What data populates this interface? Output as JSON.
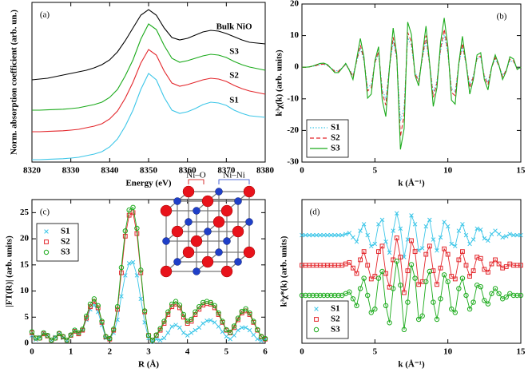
{
  "chart_data": [
    {
      "type": "line",
      "panel_label": "(a)",
      "x_label": "Energy (eV)",
      "y_label": "Norm. absorption coefficient (arb. un.)",
      "xlim": [
        8320,
        8380
      ],
      "ylim": [
        0,
        10
      ],
      "xticks": [
        8320,
        8330,
        8340,
        8350,
        8360,
        8370,
        8380
      ],
      "legend": "inline",
      "x": [
        8320,
        8322,
        8324,
        8326,
        8328,
        8330,
        8332,
        8334,
        8336,
        8338,
        8340,
        8342,
        8344,
        8346,
        8348,
        8350,
        8352,
        8354,
        8356,
        8358,
        8360,
        8362,
        8364,
        8366,
        8368,
        8370,
        8372,
        8374,
        8376,
        8378,
        8380
      ],
      "series": [
        {
          "name": "Bulk NiO",
          "color": "#000000",
          "line_style": "solid",
          "values": [
            5.15,
            5.2,
            5.25,
            5.35,
            5.45,
            5.55,
            5.65,
            5.75,
            5.9,
            6.1,
            6.4,
            6.9,
            7.6,
            8.4,
            9.2,
            9.55,
            9.2,
            8.4,
            7.8,
            7.65,
            7.75,
            7.95,
            8.15,
            8.25,
            8.2,
            8.05,
            7.85,
            7.65,
            7.5,
            7.45,
            7.4
          ]
        },
        {
          "name": "S3",
          "color": "#1aaa1a",
          "line_style": "solid",
          "values": [
            3.25,
            3.25,
            3.27,
            3.29,
            3.31,
            3.35,
            3.4,
            3.5,
            3.6,
            3.75,
            4.05,
            4.55,
            5.4,
            6.4,
            7.7,
            8.65,
            8.3,
            7.3,
            6.5,
            6.25,
            6.35,
            6.5,
            6.65,
            6.75,
            6.7,
            6.55,
            6.3,
            6.1,
            5.95,
            5.85,
            5.75
          ]
        },
        {
          "name": "S2",
          "color": "#e3262b",
          "line_style": "solid",
          "values": [
            1.9,
            1.9,
            1.92,
            1.94,
            1.96,
            2.0,
            2.05,
            2.15,
            2.25,
            2.4,
            2.7,
            3.2,
            4.0,
            5.0,
            6.2,
            7.05,
            6.7,
            5.7,
            4.95,
            4.75,
            4.85,
            5.0,
            5.15,
            5.25,
            5.2,
            5.05,
            4.8,
            4.6,
            4.45,
            4.35,
            4.25
          ]
        },
        {
          "name": "S1",
          "color": "#3cc6e8",
          "line_style": "solid",
          "values": [
            0.15,
            0.15,
            0.17,
            0.19,
            0.21,
            0.25,
            0.3,
            0.4,
            0.5,
            0.65,
            0.95,
            1.45,
            2.25,
            3.25,
            4.55,
            5.55,
            5.15,
            4.05,
            3.25,
            3.05,
            3.15,
            3.35,
            3.6,
            3.75,
            3.7,
            3.55,
            3.25,
            3.05,
            2.9,
            2.85,
            2.8
          ]
        }
      ]
    },
    {
      "type": "line",
      "panel_label": "(b)",
      "x_label": "k (Å⁻¹)",
      "y_label": "k³χ(k) (arb. units)",
      "xlim": [
        0,
        15
      ],
      "ylim": [
        -30,
        20
      ],
      "xticks": [
        0,
        5,
        10,
        15
      ],
      "yticks": [
        -30,
        -20,
        -10,
        0,
        10,
        20
      ],
      "legend": "lower left",
      "x": [
        0,
        0.25,
        0.5,
        0.75,
        1,
        1.25,
        1.5,
        1.75,
        2,
        2.25,
        2.5,
        2.75,
        3,
        3.25,
        3.5,
        3.75,
        4,
        4.25,
        4.5,
        4.75,
        5,
        5.25,
        5.5,
        5.75,
        6,
        6.25,
        6.5,
        6.75,
        7,
        7.25,
        7.5,
        7.75,
        8,
        8.25,
        8.5,
        8.75,
        9,
        9.25,
        9.5,
        9.75,
        10,
        10.25,
        10.5,
        10.75,
        11,
        11.25,
        11.5,
        11.75,
        12,
        12.25,
        12.5,
        12.75,
        13,
        13.25,
        13.5,
        13.75,
        14,
        14.25,
        14.5,
        14.75,
        15
      ],
      "series": [
        {
          "name": "S1",
          "color": "#3cc6e8",
          "line_style": "dotted",
          "values": [
            0,
            0,
            0.1,
            0.3,
            0.5,
            0.8,
            0.9,
            0.5,
            -0.3,
            -1.1,
            -1.1,
            -0.2,
            0.8,
            -0.7,
            -2.6,
            1.7,
            6.0,
            2.1,
            -6.4,
            -5.5,
            1.3,
            4.3,
            -6.8,
            -10.2,
            0,
            8.1,
            2.6,
            -17.0,
            -12.8,
            9.4,
            6.8,
            -1.7,
            -3.8,
            2.6,
            8.5,
            0.9,
            -8.1,
            -4.3,
            5.1,
            10.2,
            4.3,
            -6.8,
            -7.7,
            0.9,
            6.4,
            0.9,
            -5.5,
            -2.6,
            2.6,
            3.0,
            -2.6,
            -4.7,
            0,
            2.6,
            0.4,
            -2.6,
            -0.9,
            2.1,
            1.7,
            -0.4,
            0
          ]
        },
        {
          "name": "S2",
          "color": "#e3262b",
          "line_style": "dashed",
          "values": [
            0,
            0,
            0.1,
            0.3,
            0.6,
            0.9,
            1.0,
            0.6,
            -0.3,
            -1.3,
            -1.3,
            -0.2,
            0.9,
            -0.8,
            -3.0,
            2.0,
            7.0,
            2.5,
            -7.5,
            -6.5,
            1.5,
            5.0,
            -8.0,
            -12.0,
            0,
            9.5,
            3.0,
            -22.0,
            -15.0,
            11.0,
            8.0,
            -2.0,
            -4.5,
            3.0,
            10.0,
            1.0,
            -9.5,
            -5.0,
            6.0,
            12.0,
            5.0,
            -8.0,
            -9.0,
            1.0,
            7.5,
            1.0,
            -6.5,
            -3.0,
            3.0,
            3.5,
            -3.0,
            -5.5,
            0,
            3.0,
            0.5,
            -3.0,
            -1.0,
            2.5,
            2.0,
            -0.5,
            0
          ]
        },
        {
          "name": "S3",
          "color": "#1aaa1a",
          "line_style": "solid",
          "values": [
            0,
            0,
            0.1,
            0.4,
            0.8,
            1.2,
            1.3,
            0.8,
            -0.4,
            -1.7,
            -1.7,
            -0.3,
            1.2,
            -1.0,
            -3.9,
            2.6,
            9.1,
            3.3,
            -9.8,
            -8.5,
            2.0,
            6.5,
            -10.4,
            -15.6,
            0,
            12.4,
            3.9,
            -26.0,
            -19.5,
            14.3,
            10.4,
            -2.6,
            -5.9,
            3.9,
            13.0,
            1.3,
            -12.4,
            -6.5,
            7.8,
            15.6,
            6.5,
            -10.4,
            -11.7,
            1.3,
            9.8,
            1.3,
            -8.5,
            -3.9,
            3.9,
            4.6,
            -3.9,
            -7.2,
            0,
            3.9,
            0.7,
            -3.9,
            -1.3,
            3.3,
            2.6,
            -0.7,
            0
          ]
        }
      ]
    },
    {
      "type": "line",
      "panel_label": "(c)",
      "x_label": "R (Å)",
      "y_label": "|FT(R)| (arb. units)",
      "xlim": [
        0,
        6
      ],
      "ylim": [
        0,
        27.5
      ],
      "xticks": [
        0,
        1,
        2,
        3,
        4,
        5,
        6
      ],
      "yticks": [
        0,
        5,
        10,
        15,
        20,
        25
      ],
      "legend": "upper left",
      "inset_labels": [
        "Ni–O",
        "Ni–Ni"
      ],
      "x": [
        0,
        0.1,
        0.2,
        0.3,
        0.4,
        0.5,
        0.6,
        0.7,
        0.8,
        0.9,
        1,
        1.1,
        1.2,
        1.3,
        1.4,
        1.5,
        1.6,
        1.7,
        1.8,
        1.9,
        2,
        2.1,
        2.2,
        2.3,
        2.4,
        2.5,
        2.6,
        2.7,
        2.8,
        2.9,
        3,
        3.1,
        3.2,
        3.3,
        3.4,
        3.5,
        3.6,
        3.7,
        3.8,
        3.9,
        4,
        4.1,
        4.2,
        4.3,
        4.4,
        4.5,
        4.6,
        4.7,
        4.8,
        4.9,
        5,
        5.1,
        5.2,
        5.3,
        5.4,
        5.5,
        5.6,
        5.7,
        5.8,
        5.9,
        6
      ],
      "series": [
        {
          "name": "S1",
          "color": "#3cc6e8",
          "marker": "x",
          "values": [
            1.5,
            0.7,
            1.2,
            2.0,
            1.5,
            0.6,
            1.2,
            1.8,
            1.0,
            0.5,
            1.5,
            2.5,
            2.0,
            2.5,
            4.5,
            6.5,
            7.3,
            6.0,
            3.5,
            1.0,
            0.8,
            2.0,
            4.5,
            9.0,
            13.0,
            15.3,
            15.5,
            13.0,
            8.5,
            4.0,
            1.0,
            0.3,
            0.8,
            0.6,
            1.0,
            2.0,
            3.2,
            3.5,
            3.0,
            2.0,
            1.5,
            2.0,
            2.5,
            3.0,
            3.8,
            4.3,
            4.4,
            4.0,
            3.2,
            2.2,
            1.3,
            0.8,
            1.5,
            2.5,
            3.0,
            3.0,
            2.5,
            1.6,
            0.8,
            0.5,
            0.8
          ]
        },
        {
          "name": "S2",
          "color": "#e3262b",
          "marker": "square",
          "values": [
            2.0,
            1.0,
            1.0,
            1.8,
            1.4,
            0.6,
            1.0,
            1.8,
            1.2,
            0.6,
            1.5,
            2.3,
            1.8,
            2.5,
            4.8,
            7.0,
            8.0,
            6.8,
            4.0,
            1.2,
            0.8,
            2.5,
            6.5,
            13.5,
            20.5,
            24.5,
            25.0,
            21.0,
            13.5,
            6.0,
            1.5,
            0.6,
            1.5,
            2.5,
            3.8,
            5.5,
            7.0,
            7.5,
            6.8,
            5.0,
            3.8,
            4.2,
            5.5,
            6.5,
            7.3,
            7.6,
            7.5,
            6.8,
            5.5,
            4.0,
            2.5,
            2.0,
            3.0,
            4.5,
            5.8,
            6.2,
            5.5,
            4.0,
            2.5,
            1.2,
            0.8
          ]
        },
        {
          "name": "S3",
          "color": "#1aaa1a",
          "marker": "circle",
          "values": [
            2.2,
            1.0,
            1.0,
            2.0,
            1.5,
            0.6,
            1.0,
            1.9,
            1.3,
            0.6,
            1.6,
            2.5,
            2.0,
            2.7,
            5.2,
            7.5,
            8.5,
            7.2,
            4.2,
            1.3,
            0.9,
            2.7,
            7.0,
            14.5,
            21.5,
            25.5,
            26.0,
            22.0,
            14.0,
            6.2,
            1.5,
            0.6,
            1.6,
            2.8,
            4.2,
            6.0,
            7.5,
            8.0,
            7.3,
            5.5,
            4.2,
            4.6,
            6.0,
            7.0,
            7.8,
            8.0,
            7.8,
            7.2,
            5.8,
            4.2,
            2.6,
            2.1,
            3.3,
            4.8,
            6.1,
            6.6,
            5.8,
            4.2,
            2.6,
            1.3,
            0.9
          ]
        }
      ]
    },
    {
      "type": "line",
      "panel_label": "(d)",
      "x_label": "k (Å⁻¹)",
      "y_label": "k³χ*(k) (arb. units)",
      "xlim": [
        0,
        15
      ],
      "ylim": [
        0.5,
        11
      ],
      "xticks": [
        0,
        5,
        10,
        15
      ],
      "legend": "lower left",
      "x": [
        0,
        0.25,
        0.5,
        0.75,
        1,
        1.25,
        1.5,
        1.75,
        2,
        2.25,
        2.5,
        2.75,
        3,
        3.25,
        3.5,
        3.75,
        4,
        4.25,
        4.5,
        4.75,
        5,
        5.25,
        5.5,
        5.75,
        6,
        6.25,
        6.5,
        6.75,
        7,
        7.25,
        7.5,
        7.75,
        8,
        8.25,
        8.5,
        8.75,
        9,
        9.25,
        9.5,
        9.75,
        10,
        10.25,
        10.5,
        10.75,
        11,
        11.25,
        11.5,
        11.75,
        12,
        12.25,
        12.5,
        12.75,
        13,
        13.25,
        13.5,
        13.75,
        14,
        14.25,
        14.5,
        14.75,
        15
      ],
      "series": [
        {
          "name": "S1",
          "color": "#3cc6e8",
          "marker": "x",
          "values": [
            8.4,
            8.4,
            8.4,
            8.4,
            8.4,
            8.4,
            8.4,
            8.4,
            8.4,
            8.4,
            8.4,
            8.4,
            8.48,
            8.56,
            8.24,
            7.92,
            8.72,
            9.2,
            8.4,
            7.6,
            7.76,
            9.2,
            9.52,
            7.92,
            7.12,
            8.72,
            10.0,
            8.88,
            6.8,
            8.08,
            9.84,
            9.2,
            7.28,
            7.44,
            9.04,
            9.52,
            8.08,
            7.28,
            8.24,
            9.36,
            9.04,
            7.76,
            7.6,
            8.72,
            9.2,
            8.4,
            7.76,
            8.08,
            8.88,
            8.8,
            8.16,
            8.0,
            8.48,
            8.72,
            8.48,
            8.24,
            8.32,
            8.48,
            8.4,
            8.4,
            8.4
          ]
        },
        {
          "name": "S2",
          "color": "#e3262b",
          "marker": "square",
          "values": [
            6.2,
            6.2,
            6.2,
            6.2,
            6.2,
            6.2,
            6.2,
            6.2,
            6.2,
            6.2,
            6.2,
            6.2,
            6.3,
            6.4,
            6.0,
            5.6,
            6.6,
            7.2,
            6.2,
            5.2,
            5.4,
            7.2,
            7.6,
            5.6,
            4.6,
            6.6,
            8.2,
            6.8,
            4.2,
            5.8,
            8.0,
            7.2,
            4.8,
            5.0,
            7.0,
            7.6,
            5.8,
            4.8,
            6.0,
            7.4,
            7.0,
            5.4,
            5.2,
            6.6,
            7.2,
            6.2,
            5.4,
            5.8,
            6.8,
            6.7,
            5.9,
            5.7,
            6.3,
            6.6,
            6.3,
            6.0,
            6.1,
            6.3,
            6.2,
            6.2,
            6.2
          ]
        },
        {
          "name": "S3",
          "color": "#1aaa1a",
          "marker": "circle",
          "values": [
            4.0,
            4.0,
            4.0,
            4.0,
            4.0,
            4.0,
            4.0,
            4.0,
            4.0,
            4.0,
            4.0,
            4.0,
            4.13,
            4.25,
            3.75,
            3.25,
            4.5,
            5.25,
            4.0,
            2.75,
            3.0,
            5.25,
            5.75,
            3.25,
            2.0,
            4.5,
            6.5,
            4.75,
            1.5,
            3.5,
            6.25,
            5.25,
            2.25,
            2.5,
            5.0,
            5.75,
            3.5,
            2.25,
            3.75,
            5.5,
            5.0,
            3.0,
            2.75,
            4.5,
            5.25,
            4.0,
            3.0,
            3.5,
            4.75,
            4.63,
            3.63,
            3.38,
            4.13,
            4.5,
            4.13,
            3.75,
            3.88,
            4.13,
            4.0,
            4.0,
            4.0
          ]
        }
      ]
    }
  ]
}
